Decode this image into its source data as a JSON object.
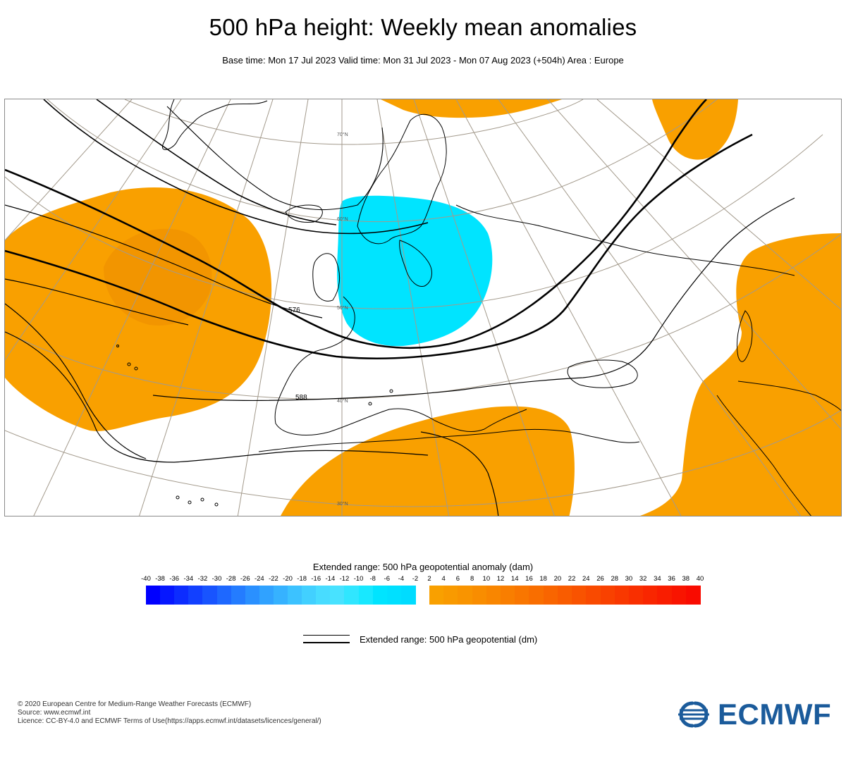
{
  "header": {
    "title": "500 hPa height: Weekly mean anomalies",
    "subtitle": "Base time: Mon 17 Jul 2023 Valid time: Mon 31 Jul 2023 - Mon 07 Aug 2023 (+504h) Area : Europe"
  },
  "map": {
    "contour_labels": {
      "c576": "576",
      "c588": "588"
    },
    "latitude_labels": {
      "lat70": "70°N",
      "lat60": "60°N",
      "lat50": "50°N",
      "lat40": "40°N",
      "lat30": "30°N"
    },
    "colors": {
      "positive_anomaly": "#f9a000",
      "positive_anomaly_stronger": "#f29500",
      "negative_anomaly": "#00e4ff",
      "coastline": "#000000",
      "graticule": "#a39a8c"
    }
  },
  "colorbar": {
    "title": "Extended range: 500 hPa geopotential anomaly (dam)",
    "ticks": [
      "-40",
      "-38",
      "-36",
      "-34",
      "-32",
      "-30",
      "-28",
      "-26",
      "-24",
      "-22",
      "-20",
      "-18",
      "-16",
      "-14",
      "-12",
      "-10",
      "-8",
      "-6",
      "-4",
      "-2",
      "2",
      "4",
      "6",
      "8",
      "10",
      "12",
      "14",
      "16",
      "18",
      "20",
      "22",
      "24",
      "26",
      "28",
      "30",
      "32",
      "34",
      "36",
      "38",
      "40"
    ],
    "negative_colors": [
      "#0000ff",
      "#0617ff",
      "#0c2cff",
      "#1240ff",
      "#1854ff",
      "#1e68ff",
      "#247cff",
      "#2a90ff",
      "#30a2ff",
      "#36b2ff",
      "#3cc2ff",
      "#42d0ff",
      "#48dcff",
      "#48e2ff",
      "#30e6ff",
      "#18e8ff",
      "#00e4ff",
      "#00e0ff",
      "#00dcff"
    ],
    "positive_colors": [
      "#f9a000",
      "#f99a00",
      "#f99400",
      "#f98d00",
      "#f98600",
      "#f97e00",
      "#f97600",
      "#f96e00",
      "#f96500",
      "#f95c00",
      "#f95300",
      "#f94a00",
      "#f94100",
      "#f93800",
      "#f92f00",
      "#f92600",
      "#f91d00",
      "#f91400",
      "#f90b00"
    ]
  },
  "line_legend": {
    "label": "Extended range: 500 hPa geopotential (dm)"
  },
  "footer": {
    "line1": "© 2020 European Centre for Medium-Range Weather Forecasts (ECMWF)",
    "line2": "Source: www.ecmwf.int",
    "line3": "Licence: CC-BY-4.0 and ECMWF Terms of Use(https://apps.ecmwf.int/datasets/licences/general/)"
  },
  "logo": {
    "text": "ECMWF",
    "color": "#1b5b9b"
  }
}
